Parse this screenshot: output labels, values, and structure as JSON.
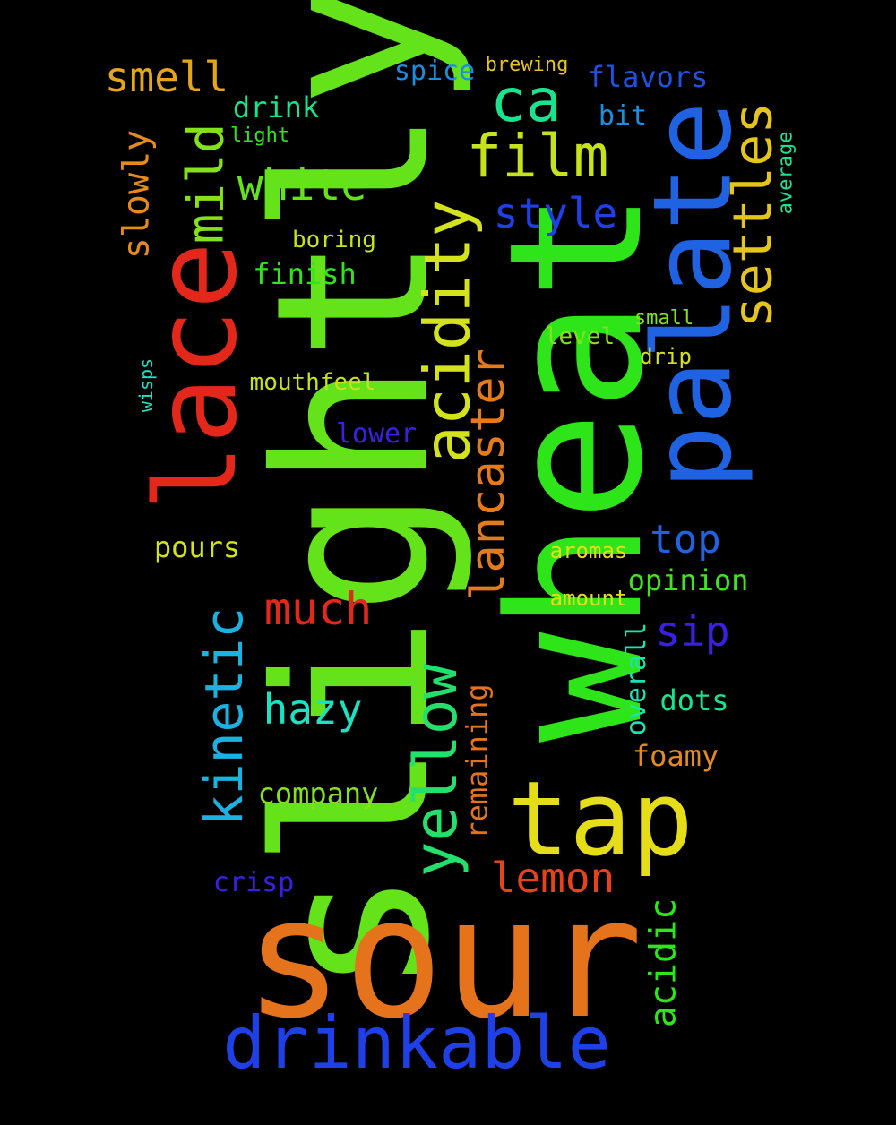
{
  "words": [
    {
      "text": "slightly",
      "color": "#64e21a",
      "size": 3,
      "rotated": true
    },
    {
      "text": "wheat",
      "color": "#2ee51a",
      "size": 3,
      "rotated": true
    },
    {
      "text": "sour",
      "color": "#e4731b",
      "size": 3,
      "rotated": false
    },
    {
      "text": "palate",
      "color": "#1f63e3",
      "size": 2,
      "rotated": true
    },
    {
      "text": "lace",
      "color": "#e3281b",
      "size": 2,
      "rotated": true
    },
    {
      "text": "tap",
      "color": "#e5dd17",
      "size": 2,
      "rotated": false
    },
    {
      "text": "drinkable",
      "color": "#1e40e6",
      "size": 2,
      "rotated": false
    },
    {
      "text": "acidity",
      "color": "#d3e21a",
      "size": 2,
      "rotated": true
    },
    {
      "text": "yellow",
      "color": "#22e06b",
      "size": 2,
      "rotated": true
    },
    {
      "text": "settles",
      "color": "#e5c51a",
      "size": 2,
      "rotated": true
    },
    {
      "text": "film",
      "color": "#c6e21a",
      "size": 2,
      "rotated": false
    },
    {
      "text": "lancaster",
      "color": "#e57a1b",
      "size": 2,
      "rotated": true
    },
    {
      "text": "kinetic",
      "color": "#1ab2e3",
      "size": 2,
      "rotated": true
    },
    {
      "text": "mild",
      "color": "#84e21a",
      "size": 2,
      "rotated": true
    },
    {
      "text": "ca",
      "color": "#1ae38e",
      "size": 2,
      "rotated": false
    },
    {
      "text": "white",
      "color": "#64e21a",
      "size": 1,
      "rotated": false
    },
    {
      "text": "much",
      "color": "#e3281b",
      "size": 1,
      "rotated": false
    },
    {
      "text": "lemon",
      "color": "#e5431b",
      "size": 1,
      "rotated": false
    },
    {
      "text": "hazy",
      "color": "#1ae3c4",
      "size": 1,
      "rotated": false
    },
    {
      "text": "style",
      "color": "#1e40e6",
      "size": 1,
      "rotated": false
    },
    {
      "text": "smell",
      "color": "#e5a51a",
      "size": 1,
      "rotated": false
    },
    {
      "text": "slowly",
      "color": "#e58b1b",
      "size": 1,
      "rotated": true
    },
    {
      "text": "top",
      "color": "#1f63e3",
      "size": 1,
      "rotated": false
    },
    {
      "text": "sip",
      "color": "#3b1fe6",
      "size": 1,
      "rotated": false
    },
    {
      "text": "acidic",
      "color": "#2ee51a",
      "size": 1,
      "rotated": true
    },
    {
      "text": "flavors",
      "color": "#1f52e3",
      "size": 0,
      "rotated": false
    },
    {
      "text": "remaining",
      "color": "#e5731b",
      "size": 0,
      "rotated": true
    },
    {
      "text": "pours",
      "color": "#d3e21a",
      "size": 0,
      "rotated": false
    },
    {
      "text": "finish",
      "color": "#2ee51a",
      "size": 0,
      "rotated": false
    },
    {
      "text": "company",
      "color": "#84e21a",
      "size": 0,
      "rotated": false
    },
    {
      "text": "opinion",
      "color": "#3ee51a",
      "size": 0,
      "rotated": false
    },
    {
      "text": "drink",
      "color": "#1ae38e",
      "size": 0,
      "rotated": false
    },
    {
      "text": "dots",
      "color": "#1ae38e",
      "size": 0,
      "rotated": false
    },
    {
      "text": "foamy",
      "color": "#e58b1b",
      "size": 0,
      "rotated": false
    },
    {
      "text": "overall",
      "color": "#1ae3b2",
      "size": 0,
      "rotated": true
    },
    {
      "text": "spice",
      "color": "#1a8ee3",
      "size": 0,
      "rotated": false
    },
    {
      "text": "crisp",
      "color": "#3b1fe6",
      "size": 0,
      "rotated": false
    },
    {
      "text": "lower",
      "color": "#3b1fe6",
      "size": 0,
      "rotated": false
    },
    {
      "text": "bit",
      "color": "#1a8ee3",
      "size": 0,
      "rotated": false
    },
    {
      "text": "mouthfeel",
      "color": "#c6e21a",
      "size": 0,
      "rotated": false
    },
    {
      "text": "boring",
      "color": "#c6e21a",
      "size": 0,
      "rotated": false
    },
    {
      "text": "level",
      "color": "#84e21a",
      "size": 0,
      "rotated": false
    },
    {
      "text": "aromas",
      "color": "#e5dd17",
      "size": 0,
      "rotated": false
    },
    {
      "text": "amount",
      "color": "#e5dd17",
      "size": 0,
      "rotated": false
    },
    {
      "text": "drip",
      "color": "#d3e21a",
      "size": 0,
      "rotated": false
    },
    {
      "text": "brewing",
      "color": "#e5c51a",
      "size": 0,
      "rotated": false
    },
    {
      "text": "small",
      "color": "#84e21a",
      "size": 0,
      "rotated": false
    },
    {
      "text": "light",
      "color": "#2ee51a",
      "size": 0,
      "rotated": false
    },
    {
      "text": "average",
      "color": "#1ae38e",
      "size": 0,
      "rotated": true
    },
    {
      "text": "wisps",
      "color": "#1ae3c4",
      "size": 0,
      "rotated": true
    }
  ]
}
